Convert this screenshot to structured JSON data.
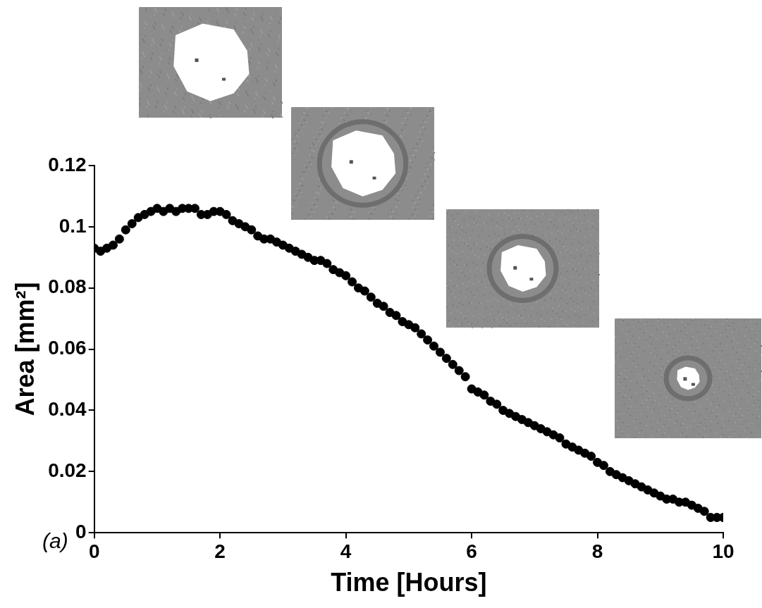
{
  "chart_data": {
    "type": "scatter",
    "x_label": "Time [Hours]",
    "y_label": "Area [mm²]",
    "annotations": [
      "(a)"
    ],
    "x": [
      0,
      0.1,
      0.2,
      0.3,
      0.4,
      0.5,
      0.6,
      0.7,
      0.8,
      0.9,
      1,
      1.1,
      1.2,
      1.3,
      1.4,
      1.5,
      1.6,
      1.7,
      1.8,
      1.9,
      2,
      2.1,
      2.2,
      2.3,
      2.4,
      2.5,
      2.6,
      2.7,
      2.8,
      2.9,
      3,
      3.1,
      3.2,
      3.3,
      3.4,
      3.5,
      3.6,
      3.7,
      3.8,
      3.9,
      4,
      4.1,
      4.2,
      4.3,
      4.4,
      4.5,
      4.6,
      4.7,
      4.8,
      4.9,
      5,
      5.1,
      5.2,
      5.3,
      5.4,
      5.5,
      5.6,
      5.7,
      5.8,
      5.9,
      6,
      6.1,
      6.2,
      6.3,
      6.4,
      6.5,
      6.6,
      6.7,
      6.8,
      6.9,
      7,
      7.1,
      7.2,
      7.3,
      7.4,
      7.5,
      7.6,
      7.7,
      7.8,
      7.9,
      8,
      8.1,
      8.2,
      8.3,
      8.4,
      8.5,
      8.6,
      8.7,
      8.8,
      8.9,
      9,
      9.1,
      9.2,
      9.3,
      9.4,
      9.5,
      9.6,
      9.7,
      9.8,
      9.9,
      10
    ],
    "values": [
      0.093,
      0.092,
      0.093,
      0.094,
      0.096,
      0.099,
      0.101,
      0.103,
      0.104,
      0.105,
      0.106,
      0.105,
      0.106,
      0.105,
      0.106,
      0.106,
      0.106,
      0.104,
      0.104,
      0.105,
      0.105,
      0.104,
      0.102,
      0.101,
      0.1,
      0.099,
      0.097,
      0.096,
      0.096,
      0.095,
      0.094,
      0.093,
      0.092,
      0.091,
      0.09,
      0.089,
      0.089,
      0.088,
      0.086,
      0.085,
      0.084,
      0.082,
      0.08,
      0.079,
      0.077,
      0.075,
      0.074,
      0.072,
      0.071,
      0.069,
      0.068,
      0.067,
      0.065,
      0.063,
      0.061,
      0.059,
      0.057,
      0.055,
      0.053,
      0.051,
      0.047,
      0.046,
      0.045,
      0.043,
      0.042,
      0.04,
      0.039,
      0.038,
      0.037,
      0.036,
      0.035,
      0.034,
      0.033,
      0.032,
      0.031,
      0.029,
      0.028,
      0.027,
      0.026,
      0.025,
      0.023,
      0.022,
      0.02,
      0.019,
      0.018,
      0.017,
      0.016,
      0.015,
      0.014,
      0.013,
      0.012,
      0.011,
      0.011,
      0.01,
      0.01,
      0.009,
      0.008,
      0.007,
      0.005,
      0.005,
      0.005
    ],
    "color": "#000000",
    "marker": "circle",
    "xlim": [
      0,
      10
    ],
    "xticks": [
      0,
      2,
      4,
      6,
      8,
      10
    ],
    "ylim": [
      0,
      0.12
    ],
    "yticks": [
      0,
      0.02,
      0.04,
      0.06,
      0.08,
      0.1,
      0.12
    ],
    "grid": false
  }
}
